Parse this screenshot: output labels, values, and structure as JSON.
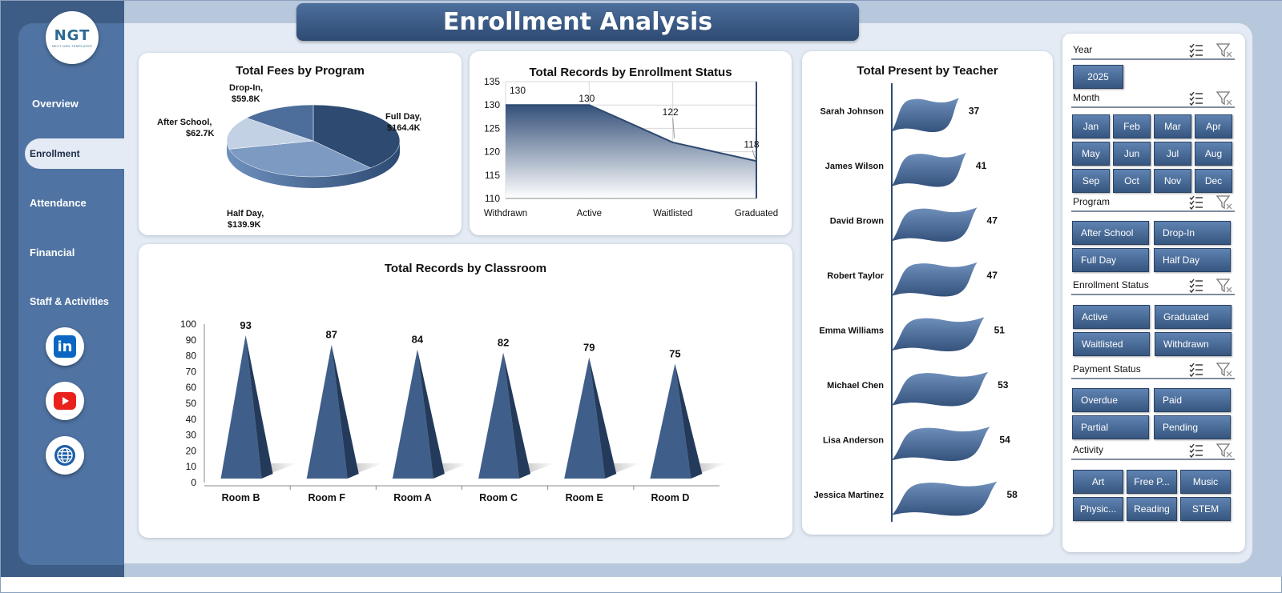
{
  "header": {
    "title": "Enrollment Analysis"
  },
  "logo": {
    "mark": "NGT",
    "sub": "NEXT GEN TEMPLATES"
  },
  "nav": {
    "items": [
      {
        "label": "Overview"
      },
      {
        "label": "Enrollment",
        "active": true
      },
      {
        "label": "Attendance"
      },
      {
        "label": "Financial"
      },
      {
        "label": "Staff & Activities"
      }
    ]
  },
  "social": {
    "icons": [
      "linkedin-icon",
      "youtube-icon",
      "globe-icon"
    ],
    "linkedin_text": "in"
  },
  "colors": {
    "accent": "#3e5d86",
    "chip": "#4a6d99",
    "bar": "#3f5f8a"
  },
  "charts": {
    "fees": {
      "title": "Total Fees by Program",
      "slices": [
        {
          "name": "Full Day",
          "label": "Full Day,",
          "value_label": "$164.4K",
          "value": 164.4
        },
        {
          "name": "Half Day",
          "label": "Half Day,",
          "value_label": "$139.9K",
          "value": 139.9
        },
        {
          "name": "After School",
          "label": "After School,",
          "value_label": "$62.7K",
          "value": 62.7
        },
        {
          "name": "Drop-In",
          "label": "Drop-In,",
          "value_label": "$59.8K",
          "value": 59.8
        }
      ]
    },
    "status": {
      "title": "Total Records by Enrollment Status",
      "categories": [
        "Withdrawn",
        "Active",
        "Waitlisted",
        "Graduated"
      ],
      "values": [
        130,
        130,
        122,
        118
      ],
      "ylim": [
        110,
        135
      ],
      "yticks": [
        "135",
        "130",
        "125",
        "120",
        "115",
        "110"
      ]
    },
    "classroom": {
      "title": "Total Records by Classroom",
      "categories": [
        "Room B",
        "Room F",
        "Room A",
        "Room C",
        "Room E",
        "Room D"
      ],
      "values": [
        93,
        87,
        84,
        82,
        79,
        75
      ],
      "ylim": [
        0,
        100
      ],
      "yticks": [
        "100",
        "90",
        "80",
        "70",
        "60",
        "50",
        "40",
        "30",
        "20",
        "10",
        "0"
      ]
    },
    "teacher": {
      "title": "Total Present by Teacher",
      "categories": [
        "Sarah Johnson",
        "James Wilson",
        "David Brown",
        "Robert Taylor",
        "Emma Williams",
        "Michael Chen",
        "Lisa Anderson",
        "Jessica Martinez"
      ],
      "values": [
        37,
        41,
        47,
        47,
        51,
        53,
        54,
        58
      ]
    }
  },
  "slicers": {
    "year": {
      "label": "Year",
      "items": [
        "2025"
      ]
    },
    "month": {
      "label": "Month",
      "items": [
        "Jan",
        "Feb",
        "Mar",
        "Apr",
        "May",
        "Jun",
        "Jul",
        "Aug",
        "Sep",
        "Oct",
        "Nov",
        "Dec"
      ]
    },
    "program": {
      "label": "Program",
      "items": [
        "After School",
        "Drop-In",
        "Full Day",
        "Half Day"
      ]
    },
    "enrollment_status": {
      "label": "Enrollment Status",
      "items": [
        "Active",
        "Graduated",
        "Waitlisted",
        "Withdrawn"
      ]
    },
    "payment_status": {
      "label": "Payment Status",
      "items": [
        "Overdue",
        "Paid",
        "Partial",
        "Pending"
      ]
    },
    "activity": {
      "label": "Activity",
      "items": [
        "Art",
        "Free P...",
        "Music",
        "Physic...",
        "Reading",
        "STEM"
      ]
    }
  }
}
